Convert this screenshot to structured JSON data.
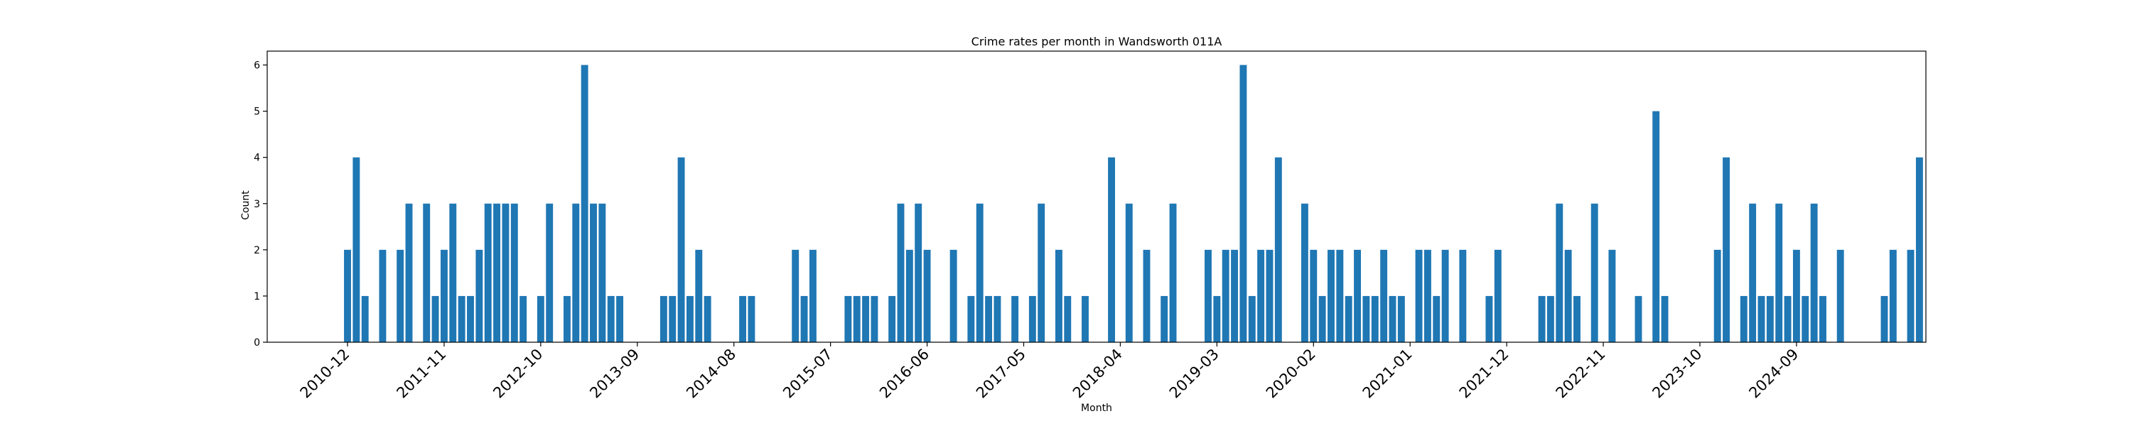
{
  "chart_data": {
    "type": "bar",
    "title": "Crime rates per month in Wandsworth 011A",
    "xlabel": "Month",
    "ylabel": "Count",
    "ylim": [
      0,
      6.3
    ],
    "yticks": [
      0,
      1,
      2,
      3,
      4,
      5,
      6
    ],
    "xtick_labels": [
      "2010-12",
      "2011-11",
      "2012-10",
      "2013-09",
      "2014-08",
      "2015-07",
      "2016-06",
      "2017-05",
      "2018-04",
      "2019-03",
      "2020-02",
      "2021-01",
      "2021-12",
      "2022-11",
      "2023-10",
      "2024-09"
    ],
    "bar_color": "#1f77b4",
    "grid": false,
    "start_month": "2010-12",
    "values": [
      2,
      4,
      1,
      0,
      2,
      0,
      2,
      3,
      0,
      3,
      1,
      2,
      3,
      1,
      1,
      2,
      3,
      3,
      3,
      3,
      1,
      0,
      1,
      3,
      0,
      1,
      3,
      6,
      3,
      3,
      1,
      1,
      0,
      0,
      0,
      0,
      1,
      1,
      4,
      1,
      2,
      1,
      0,
      0,
      0,
      1,
      1,
      0,
      0,
      0,
      0,
      2,
      1,
      2,
      0,
      0,
      0,
      1,
      1,
      1,
      1,
      0,
      1,
      3,
      2,
      3,
      2,
      0,
      0,
      2,
      0,
      1,
      3,
      1,
      1,
      0,
      1,
      0,
      1,
      3,
      0,
      2,
      1,
      0,
      1,
      0,
      0,
      4,
      0,
      3,
      0,
      2,
      0,
      1,
      3,
      0,
      0,
      0,
      2,
      1,
      2,
      2,
      6,
      1,
      2,
      2,
      4,
      0,
      0,
      3,
      2,
      1,
      2,
      2,
      1,
      2,
      1,
      1,
      2,
      1,
      1,
      0,
      2,
      2,
      1,
      2,
      0,
      2,
      0,
      0,
      1,
      2,
      0,
      0,
      0,
      0,
      1,
      1,
      3,
      2,
      1,
      0,
      3,
      0,
      2,
      0,
      0,
      1,
      0,
      5,
      1,
      0,
      0,
      0,
      0,
      0,
      2,
      4,
      0,
      1,
      3,
      1,
      1,
      3,
      1,
      2,
      1,
      3,
      1,
      0,
      2,
      0,
      0,
      0,
      0,
      1,
      2,
      0,
      2,
      4
    ]
  }
}
